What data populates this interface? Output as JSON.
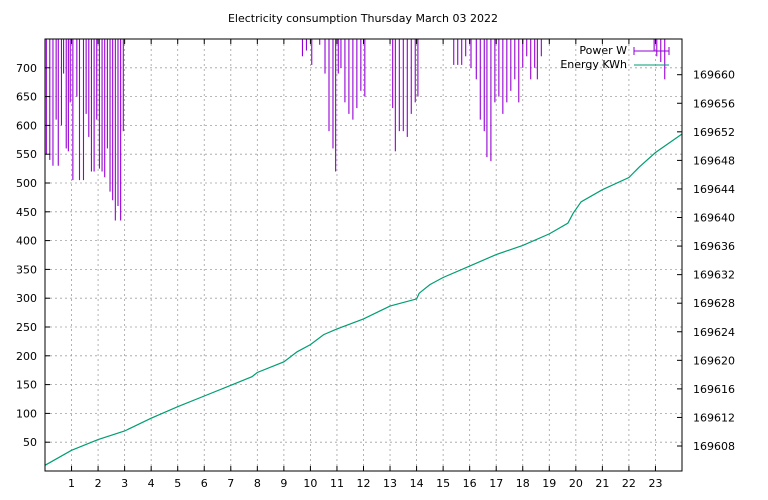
{
  "chart_data": {
    "type": "line",
    "title": "Electricity consumption Thursday March 03 2022",
    "x_ticks": [
      "1",
      "2",
      "3",
      "4",
      "5",
      "6",
      "7",
      "8",
      "9",
      "10",
      "11",
      "12",
      "13",
      "14",
      "15",
      "16",
      "17",
      "18",
      "19",
      "20",
      "21",
      "22",
      "23"
    ],
    "x_range": [
      0,
      24
    ],
    "y_left_ticks": [
      50,
      100,
      150,
      200,
      250,
      300,
      350,
      400,
      450,
      500,
      550,
      600,
      650,
      700
    ],
    "y_left_range": [
      0,
      750
    ],
    "y_right_ticks": [
      "169608",
      "169612",
      "169616",
      "169620",
      "169624",
      "169628",
      "169632",
      "169636",
      "169640",
      "169644",
      "169648",
      "169652",
      "169656",
      "169660"
    ],
    "y_right_range": [
      169604.5,
      169665
    ],
    "grid": true,
    "legend_position": "top-right",
    "series": [
      {
        "name": "Power W",
        "axis": "left",
        "color": "#9400d3",
        "style": "impulses-from-top",
        "points": [
          [
            0.05,
            550
          ],
          [
            0.18,
            540
          ],
          [
            0.3,
            530
          ],
          [
            0.42,
            610
          ],
          [
            0.5,
            530
          ],
          [
            0.62,
            600
          ],
          [
            0.7,
            690
          ],
          [
            0.8,
            560
          ],
          [
            0.88,
            555
          ],
          [
            0.95,
            640
          ],
          [
            1.05,
            505
          ],
          [
            1.2,
            650
          ],
          [
            1.3,
            505
          ],
          [
            1.45,
            505
          ],
          [
            1.55,
            620
          ],
          [
            1.65,
            580
          ],
          [
            1.75,
            520
          ],
          [
            1.85,
            520
          ],
          [
            1.95,
            610
          ],
          [
            2.05,
            525
          ],
          [
            2.15,
            520
          ],
          [
            2.25,
            510
          ],
          [
            2.35,
            560
          ],
          [
            2.45,
            485
          ],
          [
            2.55,
            470
          ],
          [
            2.65,
            435
          ],
          [
            2.75,
            460
          ],
          [
            2.85,
            435
          ],
          [
            2.95,
            590
          ],
          [
            9.7,
            720
          ],
          [
            9.85,
            730
          ],
          [
            10.05,
            705
          ],
          [
            10.35,
            740
          ],
          [
            10.55,
            690
          ],
          [
            10.7,
            590
          ],
          [
            10.85,
            560
          ],
          [
            10.95,
            520
          ],
          [
            11.05,
            690
          ],
          [
            11.15,
            700
          ],
          [
            11.3,
            640
          ],
          [
            11.45,
            620
          ],
          [
            11.6,
            610
          ],
          [
            11.75,
            630
          ],
          [
            11.9,
            660
          ],
          [
            12.05,
            650
          ],
          [
            13.1,
            630
          ],
          [
            13.2,
            555
          ],
          [
            13.35,
            590
          ],
          [
            13.5,
            590
          ],
          [
            13.65,
            580
          ],
          [
            13.8,
            620
          ],
          [
            13.95,
            640
          ],
          [
            14.05,
            650
          ],
          [
            15.4,
            705
          ],
          [
            15.55,
            705
          ],
          [
            15.7,
            705
          ],
          [
            15.85,
            720
          ],
          [
            16.05,
            700
          ],
          [
            16.25,
            680
          ],
          [
            16.4,
            610
          ],
          [
            16.55,
            590
          ],
          [
            16.65,
            545
          ],
          [
            16.8,
            538
          ],
          [
            16.95,
            640
          ],
          [
            17.1,
            650
          ],
          [
            17.25,
            620
          ],
          [
            17.4,
            640
          ],
          [
            17.55,
            660
          ],
          [
            17.7,
            680
          ],
          [
            17.85,
            640
          ],
          [
            18.0,
            700
          ],
          [
            18.15,
            720
          ],
          [
            18.3,
            680
          ],
          [
            18.45,
            700
          ],
          [
            18.55,
            680
          ],
          [
            18.7,
            720
          ],
          [
            22.95,
            730
          ],
          [
            23.05,
            720
          ],
          [
            23.2,
            710
          ],
          [
            23.35,
            680
          ]
        ]
      },
      {
        "name": "Energy KWh",
        "axis": "right",
        "color": "#009e73",
        "style": "line",
        "points": [
          [
            0,
            169605.3
          ],
          [
            1,
            169607.4
          ],
          [
            2,
            169608.9
          ],
          [
            3,
            169610.1
          ],
          [
            4,
            169611.9
          ],
          [
            5,
            169613.5
          ],
          [
            6,
            169615.0
          ],
          [
            7,
            169616.5
          ],
          [
            7.8,
            169617.7
          ],
          [
            8,
            169618.3
          ],
          [
            9,
            169619.8
          ],
          [
            9.5,
            169621.2
          ],
          [
            10,
            169622.2
          ],
          [
            10.5,
            169623.6
          ],
          [
            11,
            169624.4
          ],
          [
            12,
            169625.8
          ],
          [
            13,
            169627.6
          ],
          [
            14,
            169628.6
          ],
          [
            14.1,
            169629.4
          ],
          [
            14.5,
            169630.6
          ],
          [
            15,
            169631.6
          ],
          [
            16,
            169633.2
          ],
          [
            17,
            169634.8
          ],
          [
            18,
            169636.1
          ],
          [
            19,
            169637.7
          ],
          [
            19.7,
            169639.2
          ],
          [
            19.9,
            169640.6
          ],
          [
            20.2,
            169642.2
          ],
          [
            21,
            169643.9
          ],
          [
            22,
            169645.6
          ],
          [
            22.4,
            169647.1
          ],
          [
            23,
            169649.1
          ],
          [
            24,
            169651.7
          ]
        ]
      }
    ]
  }
}
